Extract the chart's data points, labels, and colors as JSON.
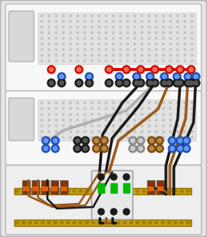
{
  "bg_color": "#dcdcdc",
  "rack_fill": "#e6e6e6",
  "rack_border": "#b8b8b8",
  "unit_fill": "#f8f8f8",
  "unit_border": "#c0c0c0",
  "panel_fill": "#d8d8d8",
  "vent_fill": "#e2e2e2",
  "vent_dot": "#c5c5c5",
  "red_wire": "#cc1100",
  "black_wire": "#1a1a1a",
  "brown_wire": "#9B5A1A",
  "gray_wire": "#b0b0b0",
  "blue_wire": "#2255cc",
  "conn_red_outer": "#cc1100",
  "conn_red_inner": "#ff6655",
  "conn_blue_outer": "#1e50bb",
  "conn_blue_inner": "#6699ee",
  "conn_black_outer": "#1a1a1a",
  "conn_black_inner": "#555555",
  "conn_brown_outer": "#7B4A10",
  "conn_brown_inner": "#bb8844",
  "conn_gray_outer": "#888888",
  "conn_gray_inner": "#cccccc",
  "din_color": "#c8a010",
  "din_border": "#907000",
  "din_hole": "#a08000",
  "breaker_fill": "#e8e8e8",
  "breaker_border": "#999999",
  "green_tog": "#00bb00",
  "term_orange": "#e06010",
  "term_dark": "#883300"
}
